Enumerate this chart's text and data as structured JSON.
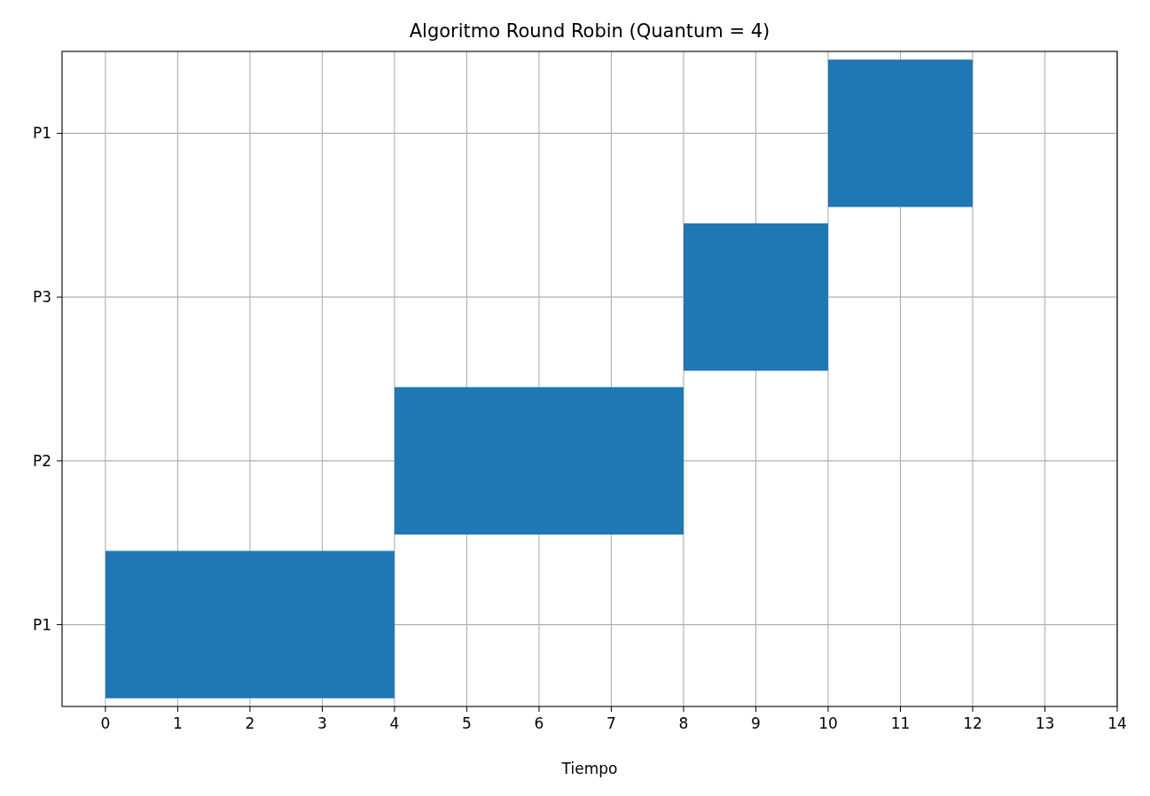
{
  "chart_data": {
    "type": "bar",
    "orientation": "horizontal",
    "title": "Algoritmo Round Robin (Quantum = 4)",
    "xlabel": "Tiempo",
    "categories": [
      "P1",
      "P3",
      "P2",
      "P1"
    ],
    "values": [
      2,
      2,
      4,
      4
    ],
    "base": [
      10,
      8,
      4,
      0
    ],
    "color": "#1f77b4",
    "xlim": [
      -0.6,
      14
    ],
    "xticks": [
      0,
      1,
      2,
      3,
      4,
      5,
      6,
      7,
      8,
      9,
      10,
      11,
      12,
      13,
      14
    ],
    "grid": true
  }
}
